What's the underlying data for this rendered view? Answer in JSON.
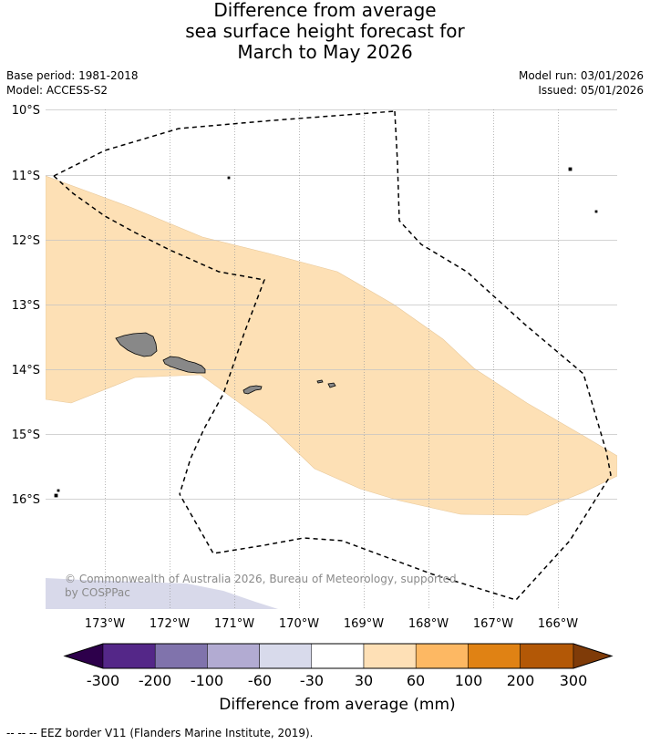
{
  "header": {
    "title_line1": "Difference from average",
    "title_line2": "sea surface height forecast for",
    "title_line3": "March to May 2026",
    "base_period": "Base period: 1981-2018",
    "model": "Model: ACCESS-S2",
    "model_run": "Model run: 03/01/2026",
    "issued": "Issued: 05/01/2026"
  },
  "map": {
    "lat_labels": [
      "10°S",
      "11°S",
      "12°S",
      "13°S",
      "14°S",
      "15°S",
      "16°S"
    ],
    "lon_labels": [
      "173°W",
      "172°W",
      "171°W",
      "170°W",
      "169°W",
      "168°W",
      "167°W",
      "166°W"
    ],
    "copyright_line1": "© Commonwealth of Australia 2026, Bureau of Meteorology, supported",
    "copyright_line2": "by COSPPac",
    "colors": {
      "positive_30_60": "#fde0b5",
      "negative_30_60": "#d8d9ea",
      "land": "#888888",
      "eez": "#000000",
      "grid": "#9a9a9a"
    }
  },
  "colorbar": {
    "title": "Difference from average (mm)",
    "tick_labels": [
      "-300",
      "-200",
      "-100",
      "-60",
      "-30",
      "30",
      "60",
      "100",
      "200",
      "300"
    ],
    "bins": [
      {
        "label": "below -300",
        "color": "#2d004b"
      },
      {
        "label": "-300 to -200",
        "color": "#542788"
      },
      {
        "label": "-200 to -100",
        "color": "#8073ac"
      },
      {
        "label": "-100 to -60",
        "color": "#b2abd2"
      },
      {
        "label": "-60 to -30",
        "color": "#d8daeb"
      },
      {
        "label": "-30 to 30",
        "color": "#ffffff"
      },
      {
        "label": "30 to 60",
        "color": "#fee0b6"
      },
      {
        "label": "60 to 100",
        "color": "#fdb863"
      },
      {
        "label": "100 to 200",
        "color": "#e08214"
      },
      {
        "label": "200 to 300",
        "color": "#b35806"
      },
      {
        "label": "above 300",
        "color": "#7f3b08"
      }
    ]
  },
  "footer": {
    "legend_text": "--  --  -- EEZ border V11 (Flanders Marine Institute, 2019)."
  }
}
